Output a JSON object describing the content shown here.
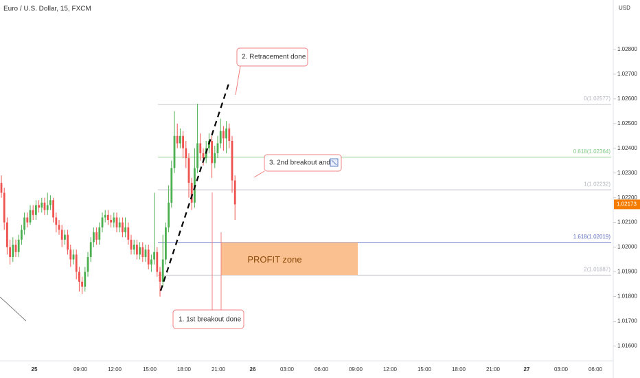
{
  "chart_data": {
    "type": "candlestick",
    "title": "Euro / U.S. Dollar, 15, FXCM",
    "currency": "USD",
    "up_color": "#4caf50",
    "down_color": "#ef5350",
    "open": [
      1.0226,
      1.0222,
      1.021,
      1.02,
      1.0196,
      1.0201,
      1.0198,
      1.0203,
      1.0207,
      1.0212,
      1.021,
      1.0215,
      1.0213,
      1.0217,
      1.0216,
      1.0218,
      1.0215,
      1.0217,
      1.0219,
      1.0212,
      1.0209,
      1.0207,
      1.0203,
      1.0205,
      1.0199,
      1.0195,
      1.0197,
      1.019,
      1.0186,
      1.0184,
      1.019,
      1.0196,
      1.0202,
      1.0206,
      1.0203,
      1.0208,
      1.0212,
      1.0213,
      1.0211,
      1.021,
      1.0212,
      1.0208,
      1.021,
      1.0206,
      1.0208,
      1.0203,
      1.0199,
      1.0201,
      1.0197,
      1.02,
      1.0196,
      1.0199,
      1.0193,
      1.0195,
      1.0198,
      1.019,
      1.0186,
      1.0195,
      1.0208,
      1.0218,
      1.0232,
      1.0245,
      1.0242,
      1.0245,
      1.024,
      1.0236,
      1.0226,
      1.0218,
      1.0232,
      1.0242,
      1.0238,
      1.0236,
      1.024,
      1.0243,
      1.0234,
      1.0238,
      1.0242,
      1.0247,
      1.0244,
      1.0248,
      1.0243,
      1.0227
    ],
    "high": [
      1.0229,
      1.0224,
      1.0212,
      1.0203,
      1.0204,
      1.0203,
      1.0205,
      1.0209,
      1.0214,
      1.0214,
      1.0217,
      1.0217,
      1.0219,
      1.0219,
      1.022,
      1.022,
      1.0222,
      1.0221,
      1.022,
      1.0214,
      1.0211,
      1.0209,
      1.0207,
      1.0207,
      1.0201,
      1.0199,
      1.0199,
      1.0192,
      1.0188,
      1.0192,
      1.0198,
      1.0204,
      1.0208,
      1.0208,
      1.021,
      1.0214,
      1.0215,
      1.0215,
      1.0213,
      1.0214,
      1.0214,
      1.0212,
      1.0212,
      1.0212,
      1.021,
      1.0205,
      1.0203,
      1.0203,
      1.0202,
      1.0202,
      1.0201,
      1.0201,
      1.0197,
      1.0222,
      1.02,
      1.0192,
      1.0205,
      1.021,
      1.0225,
      1.0235,
      1.0255,
      1.025,
      1.0248,
      1.0247,
      1.0243,
      1.0238,
      1.0228,
      1.024,
      1.0258,
      1.0246,
      1.024,
      1.0243,
      1.0246,
      1.0245,
      1.0241,
      1.0245,
      1.0252,
      1.0249,
      1.0251,
      1.025,
      1.0245,
      1.0229
    ],
    "low": [
      1.022,
      1.0207,
      1.0197,
      1.0193,
      1.0194,
      1.0196,
      1.0196,
      1.0201,
      1.0205,
      1.0208,
      1.0209,
      1.0211,
      1.0211,
      1.0214,
      1.0214,
      1.0213,
      1.0213,
      1.0215,
      1.021,
      1.0206,
      1.0205,
      1.02,
      1.0201,
      1.0197,
      1.0192,
      1.0193,
      1.0187,
      1.0182,
      1.0181,
      1.0182,
      1.0188,
      1.0194,
      1.02,
      1.0201,
      1.0201,
      1.0206,
      1.021,
      1.0209,
      1.0208,
      1.0208,
      1.0206,
      1.0206,
      1.0204,
      1.0204,
      1.0201,
      1.0197,
      1.0197,
      1.0195,
      1.0195,
      1.0194,
      1.0194,
      1.0191,
      1.019,
      1.0193,
      1.0188,
      1.018,
      1.0184,
      1.0193,
      1.0206,
      1.0216,
      1.023,
      1.024,
      1.024,
      1.0236,
      1.0232,
      1.022,
      1.0215,
      1.0216,
      1.023,
      1.0235,
      1.0233,
      1.0234,
      1.0238,
      1.0228,
      1.0232,
      1.0236,
      1.024,
      1.0239,
      1.0238,
      1.024,
      1.0222,
      1.0211
    ],
    "close": [
      1.0222,
      1.021,
      1.02,
      1.0196,
      1.0201,
      1.0198,
      1.0203,
      1.0207,
      1.0212,
      1.021,
      1.0215,
      1.0213,
      1.0217,
      1.0216,
      1.0218,
      1.0215,
      1.0217,
      1.0219,
      1.0212,
      1.0209,
      1.0207,
      1.0203,
      1.0205,
      1.0199,
      1.0195,
      1.0197,
      1.019,
      1.0186,
      1.0184,
      1.019,
      1.0196,
      1.0202,
      1.0206,
      1.0203,
      1.0208,
      1.0212,
      1.0213,
      1.0211,
      1.021,
      1.0212,
      1.0208,
      1.021,
      1.0206,
      1.0208,
      1.0203,
      1.0199,
      1.0201,
      1.0197,
      1.02,
      1.0196,
      1.0199,
      1.0193,
      1.0195,
      1.0198,
      1.019,
      1.0186,
      1.0195,
      1.0208,
      1.0218,
      1.0232,
      1.0245,
      1.0242,
      1.0245,
      1.024,
      1.0236,
      1.0226,
      1.0218,
      1.0232,
      1.0242,
      1.0238,
      1.0236,
      1.024,
      1.0243,
      1.0234,
      1.0238,
      1.0242,
      1.0247,
      1.0244,
      1.0248,
      1.0243,
      1.0227,
      1.02173
    ],
    "last_price": {
      "value": 1.02173,
      "label": "1.02173",
      "color": "#f57c00"
    },
    "ylim": [
      1.0154,
      1.03
    ],
    "yticks": [
      {
        "value": 1.028,
        "label": "1.02800"
      },
      {
        "value": 1.027,
        "label": "1.02700"
      },
      {
        "value": 1.026,
        "label": "1.02600"
      },
      {
        "value": 1.025,
        "label": "1.02500"
      },
      {
        "value": 1.024,
        "label": "1.02400"
      },
      {
        "value": 1.023,
        "label": "1.02300"
      },
      {
        "value": 1.022,
        "label": "1.02200"
      },
      {
        "value": 1.021,
        "label": "1.02100"
      },
      {
        "value": 1.02,
        "label": "1.02000"
      },
      {
        "value": 1.019,
        "label": "1.01900"
      },
      {
        "value": 1.018,
        "label": "1.01800"
      },
      {
        "value": 1.017,
        "label": "1.01700"
      },
      {
        "value": 1.016,
        "label": "1.01600"
      }
    ],
    "xticks": [
      "25",
      "09:00",
      "12:00",
      "15:00",
      "18:00",
      "21:00",
      "26",
      "03:00",
      "06:00",
      "09:00",
      "12:00",
      "15:00",
      "18:00",
      "21:00",
      "27",
      "03:00",
      "06:00"
    ],
    "fib_levels": [
      {
        "label": "0(1.02577)",
        "value": 1.02577,
        "color": "#b2b5be"
      },
      {
        "label": "0.618(1.02364)",
        "value": 1.02364,
        "color": "#81c784"
      },
      {
        "label": "1(1.02232)",
        "value": 1.02232,
        "color": "#b2b5be"
      },
      {
        "label": "1.618(1.02019)",
        "value": 1.02019,
        "color": "#5c6bc0"
      },
      {
        "label": "2(1.01887)",
        "value": 1.01887,
        "color": "#b2b5be"
      }
    ],
    "profit_zone": {
      "label": "PROFIT zone",
      "color": "#fbc08f"
    },
    "annotations": [
      "2. Retracement done",
      "3. 2nd breakout and",
      "1. 1st breakout done"
    ]
  }
}
